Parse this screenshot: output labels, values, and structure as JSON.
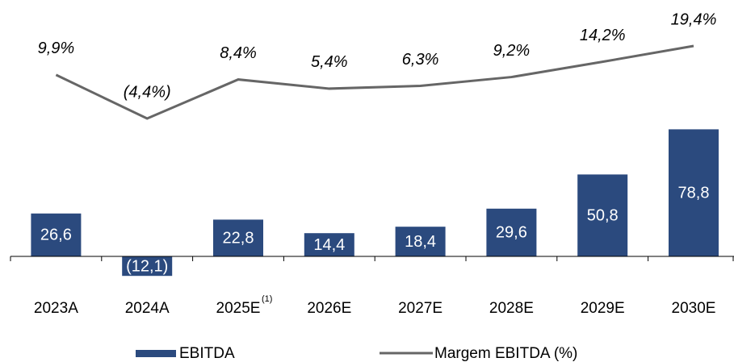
{
  "chart_data": {
    "type": "combo",
    "categories": [
      "2023A",
      "2024A",
      "2025E",
      "2026E",
      "2027E",
      "2028E",
      "2029E",
      "2030E"
    ],
    "category_superscripts": [
      null,
      null,
      "(1)",
      null,
      null,
      null,
      null,
      null
    ],
    "series": [
      {
        "name": "EBITDA",
        "type": "bar",
        "color": "#2b4a7e",
        "values": [
          26.6,
          -12.1,
          22.8,
          14.4,
          18.4,
          29.6,
          50.8,
          78.8
        ],
        "value_labels": [
          "26,6",
          "(12,1)",
          "22,8",
          "14,4",
          "18,4",
          "29,6",
          "50,8",
          "78,8"
        ]
      },
      {
        "name": "Margem EBITDA (%)",
        "type": "line",
        "axis": "y2",
        "color": "#666666",
        "values": [
          9.9,
          -4.4,
          8.4,
          5.4,
          6.3,
          9.2,
          14.2,
          19.4
        ],
        "value_labels": [
          "9,9%",
          "(4,4%)",
          "8,4%",
          "5,4%",
          "6,3%",
          "9,2%",
          "14,2%",
          "19,4%"
        ]
      }
    ],
    "ylim": [
      -20,
      80
    ],
    "y2lim": [
      -10,
      20
    ],
    "legend": "bottom"
  }
}
